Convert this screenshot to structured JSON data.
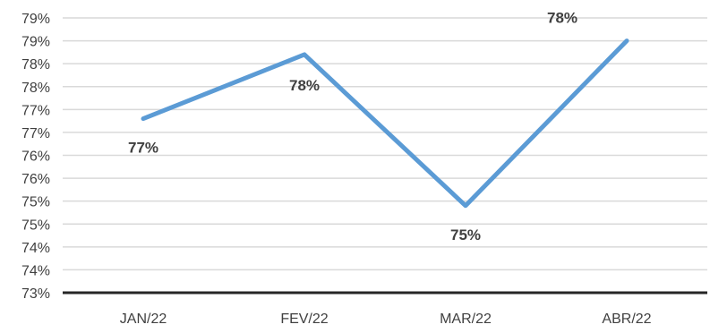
{
  "chart_data": {
    "type": "line",
    "title": "",
    "xlabel": "",
    "ylabel": "",
    "categories": [
      "JAN/22",
      "FEV/22",
      "MAR/22",
      "ABR/22"
    ],
    "series": [
      {
        "values": [
          76.8,
          78.2,
          74.9,
          78.5
        ],
        "data_labels": [
          "77%",
          "78%",
          "75%",
          "78%"
        ],
        "color": "#5b9bd5"
      }
    ],
    "ylim": [
      73,
      79
    ],
    "y_tick_values": [
      73,
      73.5,
      74,
      74.5,
      75,
      75.5,
      76,
      76.5,
      77,
      77.5,
      78,
      78.5,
      79
    ],
    "y_tick_labels": [
      "73%",
      "74%",
      "74%",
      "75%",
      "75%",
      "76%",
      "76%",
      "77%",
      "77%",
      "78%",
      "78%",
      "79%",
      "79%"
    ],
    "grid": true,
    "legend": "none",
    "colors": {
      "line": "#5b9bd5",
      "grid": "#d9d9d9",
      "axis": "#262626",
      "text": "#404040"
    }
  }
}
